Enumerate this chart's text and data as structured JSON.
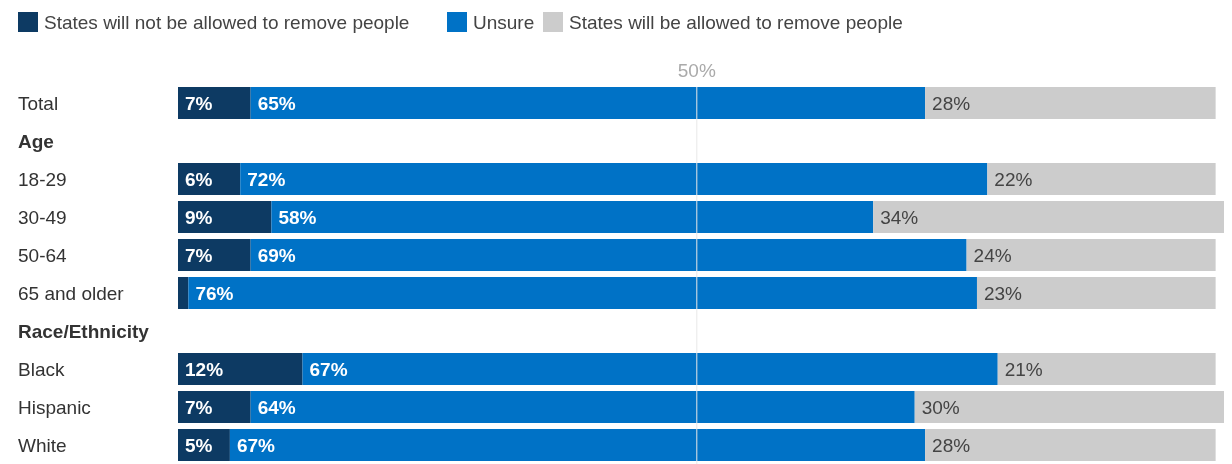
{
  "chart_data": {
    "type": "bar",
    "orientation": "horizontal",
    "stacked": true,
    "categories": [
      "Total",
      "Age",
      "18-29",
      "30-49",
      "50-64",
      "65 and older",
      "Race/Ethnicity",
      "Black",
      "Hispanic",
      "White"
    ],
    "series": [
      {
        "name": "States will not be allowed to remove people",
        "color": "#0d3a63",
        "values": [
          7,
          null,
          6,
          9,
          7,
          1,
          null,
          12,
          7,
          5
        ],
        "value_labels": [
          "7%",
          null,
          "6%",
          "9%",
          "7%",
          null,
          null,
          "12%",
          "7%",
          "5%"
        ]
      },
      {
        "name": "Unsure",
        "color": "#0072c6",
        "values": [
          65,
          null,
          72,
          58,
          69,
          76,
          null,
          67,
          64,
          67
        ],
        "value_labels": [
          "65%",
          null,
          "72%",
          "58%",
          "69%",
          "76%",
          null,
          "67%",
          "64%",
          "67%"
        ]
      },
      {
        "name": "States will be allowed to remove people",
        "color": "#cccccc",
        "values": [
          28,
          null,
          22,
          34,
          24,
          23,
          null,
          21,
          30,
          28
        ],
        "value_labels": [
          "28%",
          null,
          "22%",
          "34%",
          "24%",
          "23%",
          null,
          "21%",
          "30%",
          "28%"
        ]
      }
    ],
    "xlim": [
      0,
      101
    ],
    "legend": "top left",
    "ref_lines": [
      {
        "axis": "x",
        "value": 50,
        "label": "50%",
        "color": "#e8e8e8"
      }
    ]
  }
}
